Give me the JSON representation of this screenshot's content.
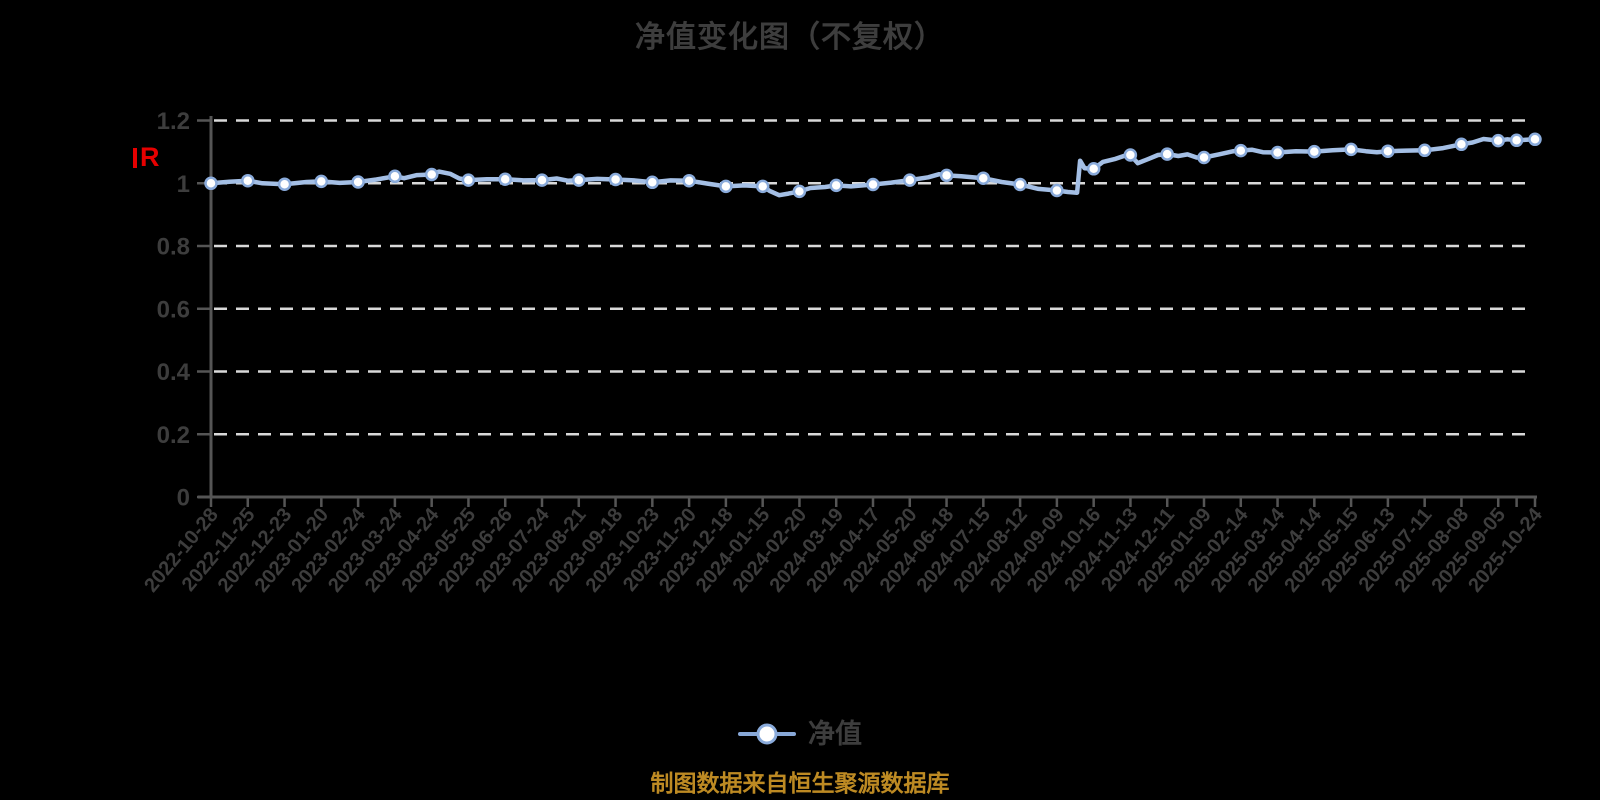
{
  "title": "净值变化图（不复权）",
  "legend": {
    "label": "净值"
  },
  "source_note": "制图数据来自恒生聚源数据库",
  "red_marker": {
    "label": "R"
  },
  "colors": {
    "background": "#000000",
    "text": "#3d3d3d",
    "axis": "#555555",
    "grid": "#d9d9d9",
    "line": "#a4bfe5",
    "legend_line": "#88a8d8",
    "marker_fill": "#ffffff",
    "marker_stroke": "#8aabdb",
    "source": "#bd8a23",
    "accent_red": "#e60000"
  },
  "chart_data": {
    "type": "line",
    "title": "净值变化图（不复权）",
    "series_name": "净值",
    "xlabel": "",
    "ylabel": "",
    "ylim": [
      0,
      1.2
    ],
    "grid": "dashed-horizontal",
    "legend_position": "bottom-center",
    "x_label_rotation": -50,
    "yticks": [
      {
        "v": 0,
        "label": "0"
      },
      {
        "v": 0.2,
        "label": "0.2"
      },
      {
        "v": 0.4,
        "label": "0.4"
      },
      {
        "v": 0.6,
        "label": "0.6"
      },
      {
        "v": 0.8,
        "label": "0.8"
      },
      {
        "v": 1,
        "label": "1"
      },
      {
        "v": 1.2,
        "label": "1.2"
      }
    ],
    "categories": [
      "2022-10-28",
      "2022-11-25",
      "2022-12-23",
      "2023-01-20",
      "2023-02-24",
      "2023-03-24",
      "2023-04-24",
      "2023-05-25",
      "2023-06-26",
      "2023-07-24",
      "2023-08-21",
      "2023-09-18",
      "2023-10-23",
      "2023-11-20",
      "2023-12-18",
      "2024-01-15",
      "2024-02-20",
      "2024-03-19",
      "2024-04-17",
      "2024-05-20",
      "2024-06-18",
      "2024-07-15",
      "2024-08-12",
      "2024-09-09",
      "2024-10-16",
      "2024-11-13",
      "2024-12-11",
      "2025-01-09",
      "2025-02-14",
      "2025-03-14",
      "2025-04-14",
      "2025-05-15",
      "2025-06-13",
      "2025-07-11",
      "2025-08-08",
      "2025-09-05",
      "2025-10-24"
    ],
    "values": [
      1.0,
      1.008,
      0.997,
      1.006,
      1.004,
      1.022,
      1.028,
      1.01,
      1.013,
      1.01,
      1.01,
      1.012,
      1.003,
      1.008,
      0.99,
      0.99,
      0.974,
      0.993,
      0.996,
      1.01,
      1.025,
      1.016,
      0.996,
      0.977,
      1.046,
      1.09,
      1.093,
      1.082,
      1.104,
      1.098,
      1.101,
      1.108,
      1.102,
      1.105,
      1.124,
      1.136,
      1.14
    ],
    "extra_points": [
      {
        "i": 35.5,
        "v": 1.137
      }
    ],
    "line_points": [
      [
        0,
        1.0
      ],
      [
        0.5,
        1.005
      ],
      [
        1,
        1.008
      ],
      [
        1.4,
        1.0
      ],
      [
        2,
        0.997
      ],
      [
        2.6,
        1.004
      ],
      [
        3,
        1.006
      ],
      [
        3.5,
        1.001
      ],
      [
        4,
        1.004
      ],
      [
        4.5,
        1.012
      ],
      [
        5,
        1.022
      ],
      [
        5.25,
        1.016
      ],
      [
        5.6,
        1.026
      ],
      [
        6,
        1.028
      ],
      [
        6.2,
        1.037
      ],
      [
        6.5,
        1.03
      ],
      [
        6.75,
        1.015
      ],
      [
        7,
        1.01
      ],
      [
        7.5,
        1.013
      ],
      [
        8,
        1.013
      ],
      [
        8.5,
        1.009
      ],
      [
        9,
        1.01
      ],
      [
        9.4,
        1.015
      ],
      [
        9.7,
        1.008
      ],
      [
        10,
        1.01
      ],
      [
        10.5,
        1.014
      ],
      [
        11,
        1.012
      ],
      [
        11.5,
        1.009
      ],
      [
        12,
        1.003
      ],
      [
        12.5,
        1.009
      ],
      [
        13,
        1.008
      ],
      [
        13.5,
        0.999
      ],
      [
        14,
        0.99
      ],
      [
        14.5,
        0.993
      ],
      [
        15,
        0.99
      ],
      [
        15.2,
        0.975
      ],
      [
        15.45,
        0.962
      ],
      [
        15.7,
        0.967
      ],
      [
        16,
        0.974
      ],
      [
        16.3,
        0.985
      ],
      [
        16.7,
        0.988
      ],
      [
        17,
        0.993
      ],
      [
        17.4,
        0.99
      ],
      [
        18,
        0.996
      ],
      [
        18.5,
        1.002
      ],
      [
        19,
        1.01
      ],
      [
        19.5,
        1.019
      ],
      [
        19.8,
        1.029
      ],
      [
        20,
        1.025
      ],
      [
        20.4,
        1.022
      ],
      [
        21,
        1.016
      ],
      [
        21.5,
        1.004
      ],
      [
        22,
        0.996
      ],
      [
        22.5,
        0.982
      ],
      [
        23,
        0.977
      ],
      [
        23.3,
        0.972
      ],
      [
        23.55,
        0.97
      ],
      [
        23.63,
        1.072
      ],
      [
        23.75,
        1.048
      ],
      [
        24,
        1.046
      ],
      [
        24.25,
        1.068
      ],
      [
        24.6,
        1.078
      ],
      [
        24.85,
        1.088
      ],
      [
        25,
        1.09
      ],
      [
        25.2,
        1.064
      ],
      [
        25.5,
        1.078
      ],
      [
        25.75,
        1.09
      ],
      [
        26,
        1.093
      ],
      [
        26.3,
        1.087
      ],
      [
        26.55,
        1.092
      ],
      [
        26.8,
        1.082
      ],
      [
        27,
        1.082
      ],
      [
        27.4,
        1.092
      ],
      [
        27.8,
        1.102
      ],
      [
        28,
        1.104
      ],
      [
        28.3,
        1.107
      ],
      [
        28.6,
        1.099
      ],
      [
        29,
        1.098
      ],
      [
        29.5,
        1.102
      ],
      [
        30,
        1.101
      ],
      [
        30.5,
        1.105
      ],
      [
        31,
        1.108
      ],
      [
        31.4,
        1.102
      ],
      [
        31.7,
        1.099
      ],
      [
        32,
        1.102
      ],
      [
        32.5,
        1.104
      ],
      [
        33,
        1.105
      ],
      [
        33.5,
        1.112
      ],
      [
        34,
        1.124
      ],
      [
        34.3,
        1.13
      ],
      [
        34.6,
        1.141
      ],
      [
        35,
        1.136
      ],
      [
        35.25,
        1.14
      ],
      [
        35.5,
        1.137
      ],
      [
        36,
        1.14
      ]
    ]
  }
}
